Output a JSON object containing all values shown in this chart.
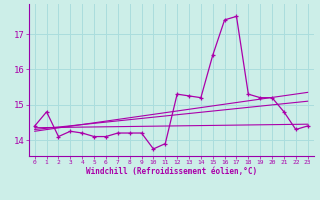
{
  "xlabel": "Windchill (Refroidissement éolien,°C)",
  "bg_color": "#cceee8",
  "grid_color": "#aadddd",
  "line_color": "#aa00aa",
  "spine_color": "#9900aa",
  "hours": [
    0,
    1,
    2,
    3,
    4,
    5,
    6,
    7,
    8,
    9,
    10,
    11,
    12,
    13,
    14,
    15,
    16,
    17,
    18,
    19,
    20,
    21,
    22,
    23
  ],
  "windchill": [
    14.4,
    14.8,
    14.1,
    14.25,
    14.2,
    14.1,
    14.1,
    14.2,
    14.2,
    14.2,
    13.75,
    13.9,
    15.3,
    15.25,
    15.2,
    16.4,
    17.4,
    17.5,
    15.3,
    15.2,
    15.2,
    14.8,
    14.3,
    14.4
  ],
  "trend1_x": [
    0,
    23
  ],
  "trend1_y": [
    14.35,
    14.45
  ],
  "trend2_x": [
    0,
    23
  ],
  "trend2_y": [
    14.3,
    15.1
  ],
  "trend3_x": [
    0,
    23
  ],
  "trend3_y": [
    14.25,
    15.35
  ],
  "ylim": [
    13.55,
    17.85
  ],
  "yticks": [
    14,
    15,
    16,
    17
  ],
  "xlim": [
    -0.5,
    23.5
  ]
}
